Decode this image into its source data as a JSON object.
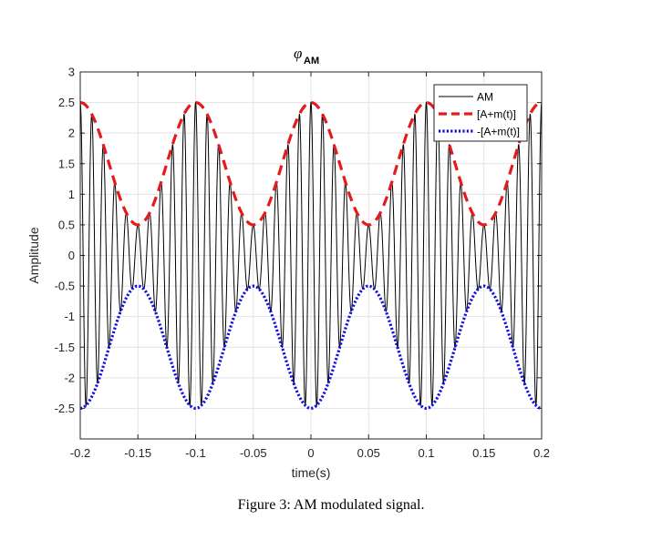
{
  "chart_data": {
    "type": "line",
    "title_symbol": "φ",
    "title_subscript": "AM",
    "xlabel": "time(s)",
    "ylabel": "Amplitude",
    "xlim": [
      -0.2,
      0.2
    ],
    "ylim": [
      -3,
      3
    ],
    "grid": true,
    "legend_position": "top-right",
    "xticks": [
      -0.2,
      -0.15,
      -0.1,
      -0.05,
      0,
      0.05,
      0.1,
      0.15,
      0.2
    ],
    "xtick_labels": [
      "-0.2",
      "-0.15",
      "-0.1",
      "-0.05",
      "0",
      "0.05",
      "0.1",
      "0.15",
      "0.2"
    ],
    "yticks": [
      3,
      2.5,
      2,
      1.5,
      1,
      0.5,
      0,
      -0.5,
      -1,
      -1.5,
      -2,
      -2.5
    ],
    "ytick_labels": [
      "3",
      "2.5",
      "2",
      "1.5",
      "1",
      "0.5",
      "0",
      "-0.5",
      "-1",
      "-1.5",
      "-2",
      "-2.5"
    ],
    "carrier_amplitude_A": 1.5,
    "message_amplitude": 1.0,
    "message_frequency_hz": 10,
    "carrier_frequency_hz": 100,
    "series": [
      {
        "name": "AM",
        "expression": "(A+m(t))·cos(2π·fc·t)",
        "color": "#000000",
        "style": "solid"
      },
      {
        "name": "[A+m(t)]",
        "expression": "A+m(t)",
        "color": "#e41a1c",
        "style": "dashed"
      },
      {
        "name": "-[A+m(t)]",
        "expression": "-(A+m(t))",
        "color": "#1010e0",
        "style": "dotted"
      }
    ]
  },
  "caption": "Figure 3: AM modulated signal."
}
